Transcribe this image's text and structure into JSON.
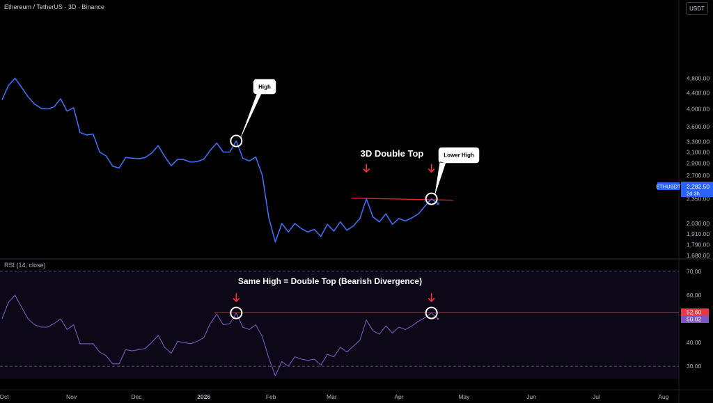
{
  "header": {
    "title": "Ethereum / TetherUS · 3D · Binance",
    "currency_button": "USDT"
  },
  "price_tag": {
    "symbol": "ETHUSDT",
    "price": "2,282.50",
    "countdown": "2d 3h",
    "color": "#2962ff"
  },
  "rsi": {
    "label": "RSI (14, close)",
    "value_tag": "50.02",
    "level_tag": "52.60"
  },
  "colors": {
    "price_line": "#3d6ef5",
    "rsi_line": "#7e57c2",
    "resistance": "#e8202f",
    "arrow": "#ff2d2d",
    "rsi_bg": "#0c0818"
  },
  "chart_data": [
    {
      "type": "line",
      "title": "Ethereum / TetherUS · 3D · Binance",
      "y_scale": "log",
      "yticks": [
        1680,
        1790,
        1910,
        2030,
        2350,
        2500,
        2700,
        2900,
        3100,
        3300,
        3600,
        4000,
        4400,
        4800
      ],
      "ytick_labels": [
        "1,680.00",
        "1,790.00",
        "1,910.00",
        "2,030.00",
        "2,350.00",
        "2,500.00",
        "2,700.00",
        "2,900.00",
        "3,100.00",
        "3,300.00",
        "3,600.00",
        "4,000.00",
        "4,400.00",
        "4,800.00"
      ],
      "xtick_labels": [
        "Oct",
        "Nov",
        "Dec",
        "2026",
        "Feb",
        "Mar",
        "Apr",
        "May",
        "Jun",
        "Jul",
        "Aug"
      ],
      "xtick_dates": [
        "2025-10-01",
        "2025-11-01",
        "2025-12-01",
        "2026-01-01",
        "2026-02-01",
        "2026-03-01",
        "2026-04-01",
        "2026-05-01",
        "2026-06-01",
        "2026-07-01",
        "2026-08-01"
      ],
      "series": [
        {
          "dates": [
            "2025-09-30",
            "2025-10-03",
            "2025-10-06",
            "2025-10-09",
            "2025-10-12",
            "2025-10-15",
            "2025-10-18",
            "2025-10-21",
            "2025-10-24",
            "2025-10-27",
            "2025-10-30",
            "2025-11-02",
            "2025-11-05",
            "2025-11-08",
            "2025-11-11",
            "2025-11-14",
            "2025-11-17",
            "2025-11-20",
            "2025-11-23",
            "2025-11-26",
            "2025-11-29",
            "2025-12-02",
            "2025-12-05",
            "2025-12-08",
            "2025-12-11",
            "2025-12-14",
            "2025-12-17",
            "2025-12-20",
            "2025-12-23",
            "2025-12-26",
            "2025-12-29",
            "2026-01-01",
            "2026-01-04",
            "2026-01-07",
            "2026-01-10",
            "2026-01-13",
            "2026-01-16",
            "2026-01-19",
            "2026-01-22",
            "2026-01-25",
            "2026-01-28",
            "2026-01-31",
            "2026-02-03",
            "2026-02-06",
            "2026-02-09",
            "2026-02-12",
            "2026-02-15",
            "2026-02-18",
            "2026-02-21",
            "2026-02-24",
            "2026-02-27",
            "2026-03-02",
            "2026-03-05",
            "2026-03-08",
            "2026-03-11",
            "2026-03-14",
            "2026-03-17",
            "2026-03-20",
            "2026-03-23",
            "2026-03-26",
            "2026-03-29",
            "2026-04-01",
            "2026-04-04",
            "2026-04-07",
            "2026-04-10",
            "2026-04-13",
            "2026-04-16",
            "2026-04-19"
          ],
          "values": [
            4220,
            4600,
            4800,
            4550,
            4300,
            4120,
            4020,
            4000,
            4050,
            4250,
            3950,
            4030,
            3480,
            3430,
            3450,
            3100,
            3030,
            2850,
            2820,
            3000,
            2990,
            2980,
            3000,
            3080,
            3220,
            3020,
            2860,
            2970,
            2960,
            2920,
            2930,
            2970,
            3130,
            3270,
            3100,
            3100,
            3310,
            2990,
            2940,
            3010,
            2700,
            2100,
            1820,
            2030,
            1930,
            2030,
            1970,
            1930,
            1960,
            1880,
            2020,
            1940,
            2050,
            1950,
            2000,
            2090,
            2350,
            2110,
            2050,
            2150,
            2020,
            2090,
            2060,
            2100,
            2150,
            2250,
            2350,
            2282.5
          ]
        }
      ],
      "resistance_price": 2340,
      "annotations": [
        "High",
        "3D Double Top",
        "Lower High"
      ]
    },
    {
      "type": "line",
      "title": "RSI (14, close)",
      "yticks": [
        30,
        40,
        50,
        60,
        70
      ],
      "ytick_labels": [
        "30.00",
        "40.00",
        "50.00",
        "60.00",
        "70.00"
      ],
      "ylim": [
        25,
        72
      ],
      "levels": [
        70,
        30
      ],
      "resistance_value": 52.6,
      "series": [
        {
          "dates": [
            "2025-09-30",
            "2025-10-03",
            "2025-10-06",
            "2025-10-09",
            "2025-10-12",
            "2025-10-15",
            "2025-10-18",
            "2025-10-21",
            "2025-10-24",
            "2025-10-27",
            "2025-10-30",
            "2025-11-02",
            "2025-11-05",
            "2025-11-08",
            "2025-11-11",
            "2025-11-14",
            "2025-11-17",
            "2025-11-20",
            "2025-11-23",
            "2025-11-26",
            "2025-11-29",
            "2025-12-02",
            "2025-12-05",
            "2025-12-08",
            "2025-12-11",
            "2025-12-14",
            "2025-12-17",
            "2025-12-20",
            "2025-12-23",
            "2025-12-26",
            "2025-12-29",
            "2026-01-01",
            "2026-01-04",
            "2026-01-07",
            "2026-01-10",
            "2026-01-13",
            "2026-01-16",
            "2026-01-19",
            "2026-01-22",
            "2026-01-25",
            "2026-01-28",
            "2026-01-31",
            "2026-02-03",
            "2026-02-06",
            "2026-02-09",
            "2026-02-12",
            "2026-02-15",
            "2026-02-18",
            "2026-02-21",
            "2026-02-24",
            "2026-02-27",
            "2026-03-02",
            "2026-03-05",
            "2026-03-08",
            "2026-03-11",
            "2026-03-14",
            "2026-03-17",
            "2026-03-20",
            "2026-03-23",
            "2026-03-26",
            "2026-03-29",
            "2026-04-01",
            "2026-04-04",
            "2026-04-07",
            "2026-04-10",
            "2026-04-13",
            "2026-04-16",
            "2026-04-19"
          ],
          "values": [
            50,
            57,
            60,
            55,
            50,
            47.5,
            46.5,
            46.5,
            48,
            50,
            45.5,
            47.5,
            39.5,
            39.5,
            39.5,
            36,
            34.5,
            31,
            31,
            37,
            36.5,
            37,
            37.5,
            40,
            43,
            38,
            35.5,
            40.5,
            40,
            39.5,
            40.5,
            42,
            48,
            52,
            47.5,
            48,
            52.5,
            46.5,
            45.5,
            47.5,
            42.5,
            33.5,
            26,
            32,
            30,
            34,
            33,
            32.5,
            33,
            30.5,
            35,
            34,
            38,
            36,
            38.5,
            41,
            49.5,
            45,
            43.5,
            47,
            44,
            46.5,
            45.5,
            47,
            49,
            50.5,
            52.5,
            50.02
          ]
        }
      ],
      "annotations": [
        "Same High = Double Top (Bearish Divergence)"
      ]
    }
  ]
}
